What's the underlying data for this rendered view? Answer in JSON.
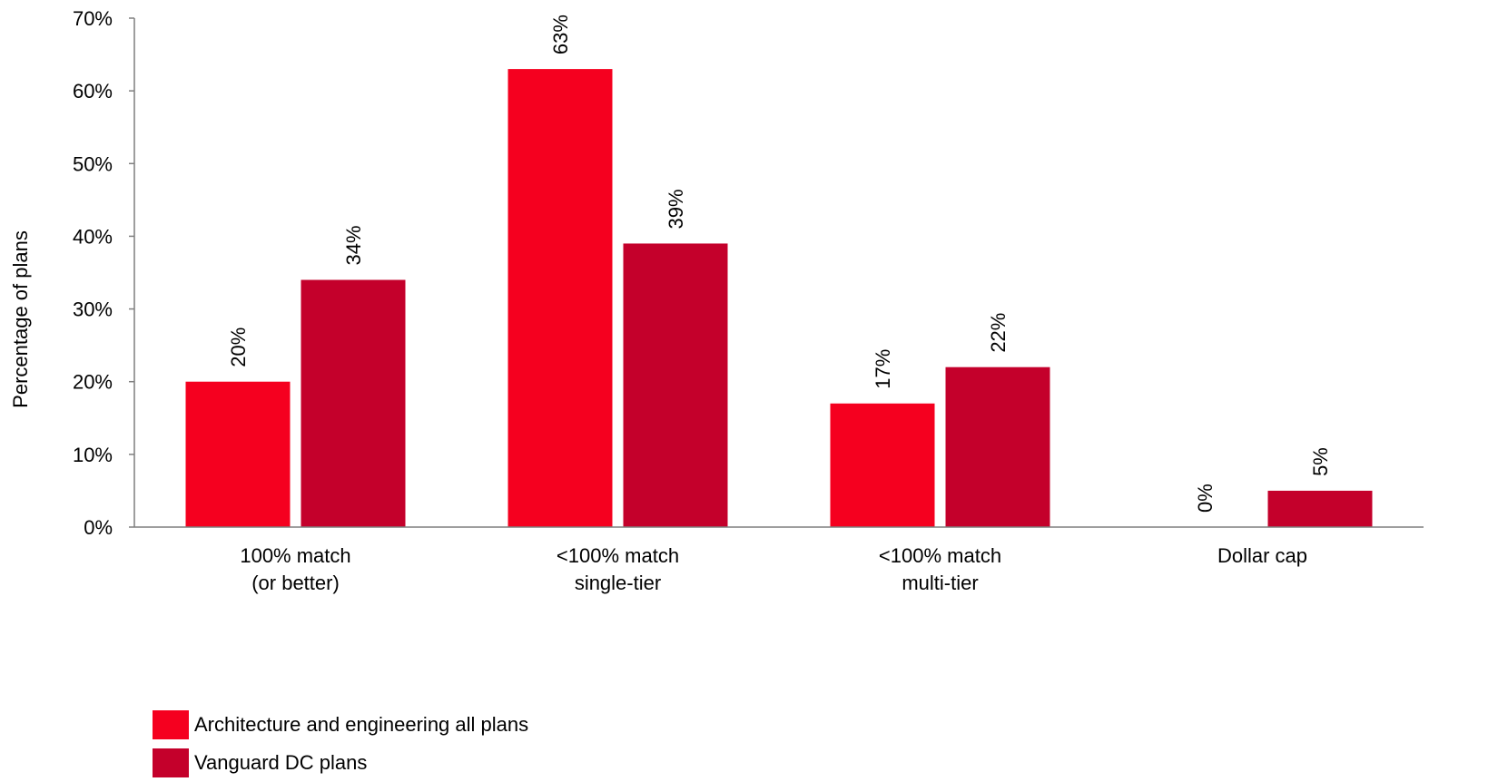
{
  "chart_data": {
    "type": "bar",
    "categories": [
      [
        "100% match",
        "(or better)"
      ],
      [
        "<100% match",
        "single-tier"
      ],
      [
        "<100% match",
        "multi-tier"
      ],
      [
        "Dollar cap"
      ]
    ],
    "series": [
      {
        "name": "Architecture and engineering all plans",
        "color": "#f5001f",
        "values": [
          20,
          63,
          17,
          0
        ],
        "labels": [
          "20%",
          "63%",
          "17%",
          "0%"
        ]
      },
      {
        "name": "Vanguard DC plans",
        "color": "#c4002b",
        "values": [
          34,
          39,
          22,
          5
        ],
        "labels": [
          "34%",
          "39%",
          "22%",
          "5%"
        ]
      }
    ],
    "ylabel": "Percentage of plans",
    "ylim": [
      0,
      70
    ],
    "yticks": [
      0,
      10,
      20,
      30,
      40,
      50,
      60,
      70
    ],
    "ytick_labels": [
      "0%",
      "10%",
      "20%",
      "30%",
      "40%",
      "50%",
      "60%",
      "70%"
    ],
    "grid": false,
    "legend_position": "bottom-left"
  }
}
